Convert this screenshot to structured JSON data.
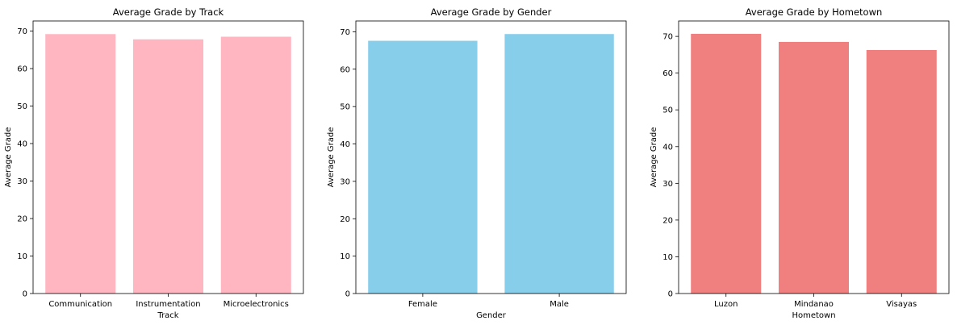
{
  "chart_data": [
    {
      "type": "bar",
      "title": "Average Grade by Track",
      "xlabel": "Track",
      "ylabel": "Average Grade",
      "categories": [
        "Communication",
        "Instrumentation",
        "Microelectronics"
      ],
      "values": [
        69.2,
        67.8,
        68.5
      ],
      "ylim": [
        0,
        72.7
      ],
      "yticks": [
        0,
        10,
        20,
        30,
        40,
        50,
        60,
        70
      ],
      "color": "#ffb6c1",
      "grid": false
    },
    {
      "type": "bar",
      "title": "Average Grade by Gender",
      "xlabel": "Gender",
      "ylabel": "Average Grade",
      "categories": [
        "Female",
        "Male"
      ],
      "values": [
        67.6,
        69.4
      ],
      "ylim": [
        0,
        72.9
      ],
      "yticks": [
        0,
        10,
        20,
        30,
        40,
        50,
        60,
        70
      ],
      "color": "#87ceeb",
      "grid": false
    },
    {
      "type": "bar",
      "title": "Average Grade by Hometown",
      "xlabel": "Hometown",
      "ylabel": "Average Grade",
      "categories": [
        "Luzon",
        "Mindanao",
        "Visayas"
      ],
      "values": [
        70.7,
        68.5,
        66.3
      ],
      "ylim": [
        0,
        74.2
      ],
      "yticks": [
        0,
        10,
        20,
        30,
        40,
        50,
        60,
        70
      ],
      "color": "#f08080",
      "grid": false
    }
  ]
}
